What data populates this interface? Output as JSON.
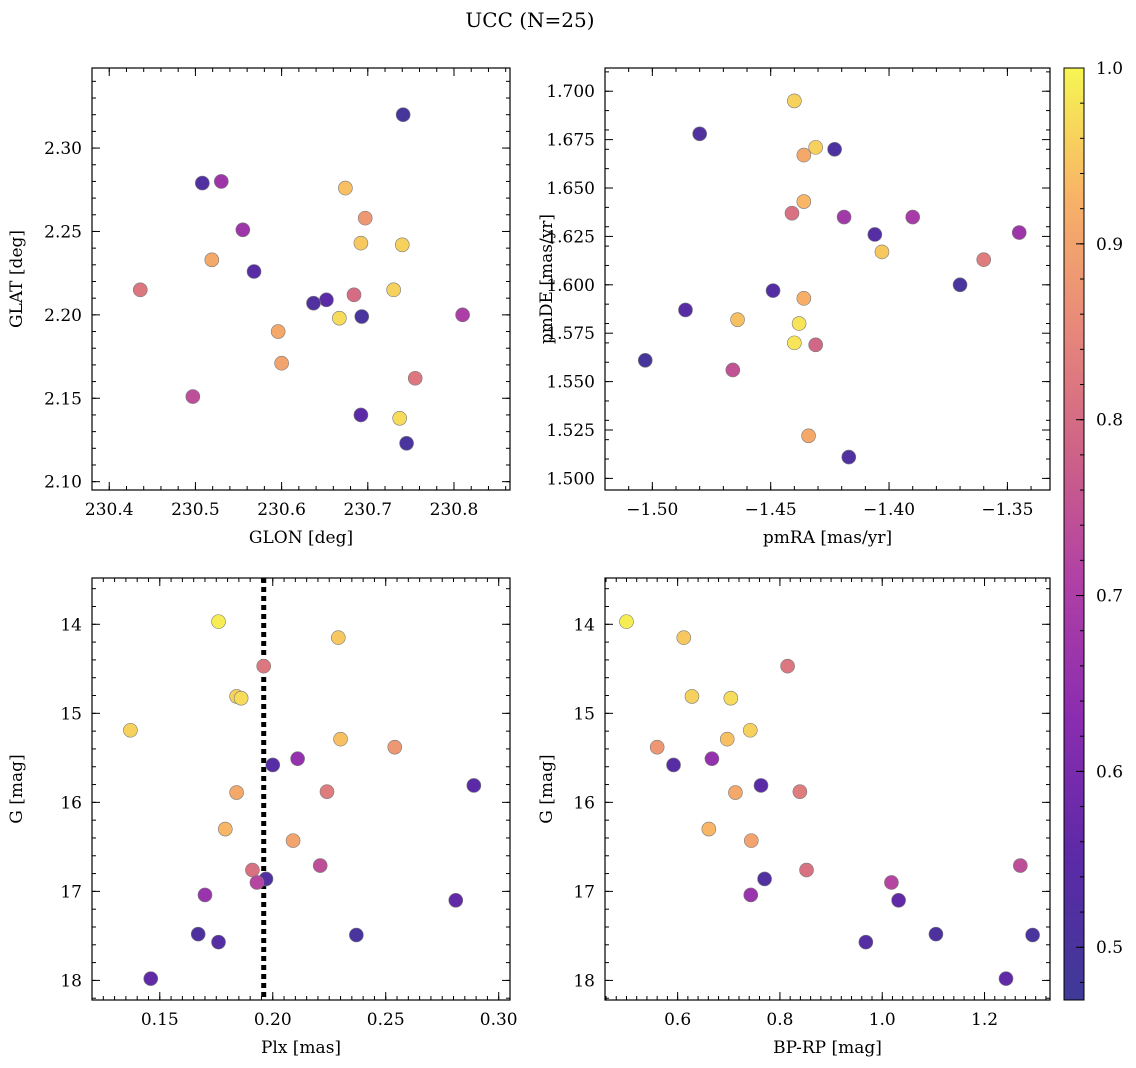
{
  "chart_data": {
    "title": "UCC (N=25)",
    "colorbar": {
      "colormap": "plasma",
      "range": [
        0.47,
        1.0
      ],
      "ticks": [
        "0.5",
        "0.6",
        "0.7",
        "0.8",
        "0.9",
        "1.0"
      ]
    },
    "panels": [
      {
        "type": "scatter",
        "xlabel": "GLON [deg]",
        "ylabel": "GLAT [deg]",
        "xlim": [
          230.38,
          230.865
        ],
        "ylim": [
          2.095,
          2.348
        ],
        "xticks": [
          "230.4",
          "230.5",
          "230.6",
          "230.7",
          "230.8"
        ],
        "yticks": [
          "2.10",
          "2.15",
          "2.20",
          "2.25",
          "2.30"
        ],
        "points": [
          {
            "x": 230.741,
            "y": 2.32,
            "c": 0.49
          },
          {
            "x": 230.508,
            "y": 2.279,
            "c": 0.52
          },
          {
            "x": 230.53,
            "y": 2.28,
            "c": 0.67
          },
          {
            "x": 230.674,
            "y": 2.276,
            "c": 0.94
          },
          {
            "x": 230.697,
            "y": 2.258,
            "c": 0.88
          },
          {
            "x": 230.555,
            "y": 2.251,
            "c": 0.67
          },
          {
            "x": 230.692,
            "y": 2.243,
            "c": 0.95
          },
          {
            "x": 230.74,
            "y": 2.242,
            "c": 0.96
          },
          {
            "x": 230.519,
            "y": 2.233,
            "c": 0.91
          },
          {
            "x": 230.568,
            "y": 2.226,
            "c": 0.54
          },
          {
            "x": 230.436,
            "y": 2.215,
            "c": 0.82
          },
          {
            "x": 230.73,
            "y": 2.215,
            "c": 0.96
          },
          {
            "x": 230.684,
            "y": 2.212,
            "c": 0.8
          },
          {
            "x": 230.652,
            "y": 2.209,
            "c": 0.55
          },
          {
            "x": 230.637,
            "y": 2.207,
            "c": 0.52
          },
          {
            "x": 230.81,
            "y": 2.2,
            "c": 0.7
          },
          {
            "x": 230.693,
            "y": 2.199,
            "c": 0.5
          },
          {
            "x": 230.667,
            "y": 2.198,
            "c": 0.97
          },
          {
            "x": 230.596,
            "y": 2.19,
            "c": 0.91
          },
          {
            "x": 230.6,
            "y": 2.171,
            "c": 0.9
          },
          {
            "x": 230.755,
            "y": 2.162,
            "c": 0.82
          },
          {
            "x": 230.497,
            "y": 2.151,
            "c": 0.74
          },
          {
            "x": 230.692,
            "y": 2.14,
            "c": 0.55
          },
          {
            "x": 230.737,
            "y": 2.138,
            "c": 0.97
          },
          {
            "x": 230.745,
            "y": 2.123,
            "c": 0.5
          }
        ]
      },
      {
        "type": "scatter",
        "xlabel": "pmRA [mas/yr]",
        "ylabel": "pmDE [mas/yr]",
        "xlim": [
          -1.52,
          -1.332
        ],
        "ylim": [
          1.494,
          1.712
        ],
        "xticks": [
          "−1.50",
          "−1.45",
          "−1.40",
          "−1.35"
        ],
        "yticks": [
          "1.500",
          "1.525",
          "1.550",
          "1.575",
          "1.600",
          "1.625",
          "1.650",
          "1.675",
          "1.700"
        ],
        "points": [
          {
            "x": -1.44,
            "y": 1.695,
            "c": 0.96
          },
          {
            "x": -1.48,
            "y": 1.678,
            "c": 0.52
          },
          {
            "x": -1.431,
            "y": 1.671,
            "c": 0.96
          },
          {
            "x": -1.423,
            "y": 1.67,
            "c": 0.51
          },
          {
            "x": -1.436,
            "y": 1.667,
            "c": 0.91
          },
          {
            "x": -1.436,
            "y": 1.643,
            "c": 0.93
          },
          {
            "x": -1.441,
            "y": 1.637,
            "c": 0.81
          },
          {
            "x": -1.419,
            "y": 1.635,
            "c": 0.68
          },
          {
            "x": -1.39,
            "y": 1.635,
            "c": 0.69
          },
          {
            "x": -1.345,
            "y": 1.627,
            "c": 0.67
          },
          {
            "x": -1.406,
            "y": 1.626,
            "c": 0.53
          },
          {
            "x": -1.403,
            "y": 1.617,
            "c": 0.95
          },
          {
            "x": -1.36,
            "y": 1.613,
            "c": 0.83
          },
          {
            "x": -1.37,
            "y": 1.6,
            "c": 0.5
          },
          {
            "x": -1.449,
            "y": 1.597,
            "c": 0.53
          },
          {
            "x": -1.436,
            "y": 1.593,
            "c": 0.92
          },
          {
            "x": -1.486,
            "y": 1.587,
            "c": 0.54
          },
          {
            "x": -1.464,
            "y": 1.582,
            "c": 0.94
          },
          {
            "x": -1.438,
            "y": 1.58,
            "c": 0.98
          },
          {
            "x": -1.44,
            "y": 1.57,
            "c": 0.98
          },
          {
            "x": -1.431,
            "y": 1.569,
            "c": 0.79
          },
          {
            "x": -1.503,
            "y": 1.561,
            "c": 0.49
          },
          {
            "x": -1.466,
            "y": 1.556,
            "c": 0.75
          },
          {
            "x": -1.434,
            "y": 1.522,
            "c": 0.91
          },
          {
            "x": -1.417,
            "y": 1.511,
            "c": 0.52
          }
        ]
      },
      {
        "type": "scatter",
        "xlabel": "Plx [mas]",
        "ylabel": "G [mag]",
        "xlim": [
          0.12,
          0.305
        ],
        "ylim": [
          18.22,
          13.48
        ],
        "xticks": [
          "0.15",
          "0.20",
          "0.25",
          "0.30"
        ],
        "yticks": [
          "14",
          "15",
          "16",
          "17",
          "18"
        ],
        "vline": {
          "x": 0.196,
          "style": "dotted"
        },
        "points": [
          {
            "x": 0.176,
            "y": 13.97,
            "c": 0.99
          },
          {
            "x": 0.229,
            "y": 14.15,
            "c": 0.95
          },
          {
            "x": 0.196,
            "y": 14.47,
            "c": 0.82
          },
          {
            "x": 0.184,
            "y": 14.81,
            "c": 0.96
          },
          {
            "x": 0.186,
            "y": 14.83,
            "c": 0.97
          },
          {
            "x": 0.137,
            "y": 15.19,
            "c": 0.96
          },
          {
            "x": 0.23,
            "y": 15.29,
            "c": 0.94
          },
          {
            "x": 0.254,
            "y": 15.38,
            "c": 0.88
          },
          {
            "x": 0.211,
            "y": 15.51,
            "c": 0.65
          },
          {
            "x": 0.2,
            "y": 15.58,
            "c": 0.54
          },
          {
            "x": 0.289,
            "y": 15.81,
            "c": 0.55
          },
          {
            "x": 0.224,
            "y": 15.88,
            "c": 0.83
          },
          {
            "x": 0.184,
            "y": 15.89,
            "c": 0.91
          },
          {
            "x": 0.179,
            "y": 16.3,
            "c": 0.93
          },
          {
            "x": 0.209,
            "y": 16.43,
            "c": 0.9
          },
          {
            "x": 0.221,
            "y": 16.71,
            "c": 0.74
          },
          {
            "x": 0.191,
            "y": 16.76,
            "c": 0.81
          },
          {
            "x": 0.197,
            "y": 16.86,
            "c": 0.52
          },
          {
            "x": 0.193,
            "y": 16.9,
            "c": 0.72
          },
          {
            "x": 0.17,
            "y": 17.04,
            "c": 0.66
          },
          {
            "x": 0.281,
            "y": 17.1,
            "c": 0.56
          },
          {
            "x": 0.167,
            "y": 17.48,
            "c": 0.51
          },
          {
            "x": 0.237,
            "y": 17.49,
            "c": 0.5
          },
          {
            "x": 0.176,
            "y": 17.57,
            "c": 0.53
          },
          {
            "x": 0.146,
            "y": 17.98,
            "c": 0.56
          }
        ]
      },
      {
        "type": "scatter",
        "xlabel": "BP-RP [mag]",
        "ylabel": "G [mag]",
        "xlim": [
          0.458,
          1.328
        ],
        "ylim": [
          18.22,
          13.48
        ],
        "xticks": [
          "0.6",
          "0.8",
          "1.0",
          "1.2"
        ],
        "yticks": [
          "14",
          "15",
          "16",
          "17",
          "18"
        ],
        "points": [
          {
            "x": 0.5,
            "y": 13.97,
            "c": 0.99
          },
          {
            "x": 0.612,
            "y": 14.15,
            "c": 0.95
          },
          {
            "x": 0.815,
            "y": 14.47,
            "c": 0.82
          },
          {
            "x": 0.628,
            "y": 14.81,
            "c": 0.96
          },
          {
            "x": 0.704,
            "y": 14.83,
            "c": 0.97
          },
          {
            "x": 0.742,
            "y": 15.19,
            "c": 0.96
          },
          {
            "x": 0.697,
            "y": 15.29,
            "c": 0.94
          },
          {
            "x": 0.56,
            "y": 15.38,
            "c": 0.88
          },
          {
            "x": 0.667,
            "y": 15.51,
            "c": 0.65
          },
          {
            "x": 0.592,
            "y": 15.58,
            "c": 0.54
          },
          {
            "x": 0.763,
            "y": 15.81,
            "c": 0.55
          },
          {
            "x": 0.839,
            "y": 15.88,
            "c": 0.83
          },
          {
            "x": 0.713,
            "y": 15.89,
            "c": 0.91
          },
          {
            "x": 0.661,
            "y": 16.3,
            "c": 0.93
          },
          {
            "x": 0.744,
            "y": 16.43,
            "c": 0.9
          },
          {
            "x": 1.27,
            "y": 16.71,
            "c": 0.74
          },
          {
            "x": 0.852,
            "y": 16.76,
            "c": 0.81
          },
          {
            "x": 0.77,
            "y": 16.86,
            "c": 0.52
          },
          {
            "x": 1.018,
            "y": 16.9,
            "c": 0.72
          },
          {
            "x": 0.743,
            "y": 17.04,
            "c": 0.66
          },
          {
            "x": 1.032,
            "y": 17.1,
            "c": 0.56
          },
          {
            "x": 1.105,
            "y": 17.48,
            "c": 0.51
          },
          {
            "x": 1.294,
            "y": 17.49,
            "c": 0.5
          },
          {
            "x": 0.968,
            "y": 17.57,
            "c": 0.53
          },
          {
            "x": 1.242,
            "y": 17.98,
            "c": 0.56
          }
        ]
      }
    ]
  }
}
